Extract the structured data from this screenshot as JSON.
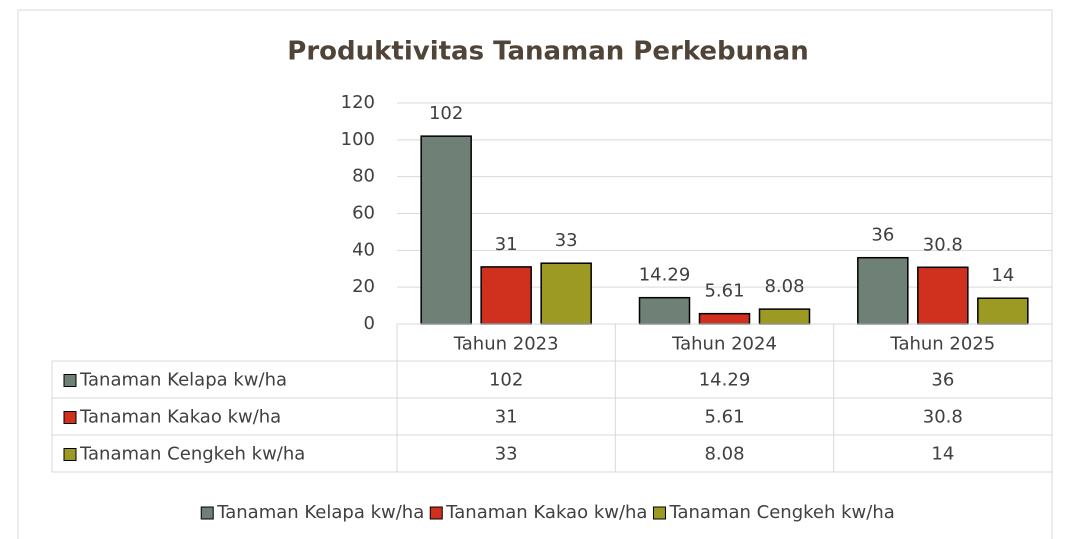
{
  "chart_data": {
    "type": "bar",
    "title": "Produktivitas Tanaman Perkebunan",
    "categories": [
      "Tahun 2023",
      "Tahun 2024",
      "Tahun 2025"
    ],
    "series": [
      {
        "name": "Tanaman Kelapa kw/ha",
        "color": "#6f8076",
        "values": [
          102,
          14.29,
          36
        ]
      },
      {
        "name": "Tanaman Kakao kw/ha",
        "color": "#d0301e",
        "values": [
          31,
          5.61,
          30.8
        ]
      },
      {
        "name": "Tanaman Cengkeh kw/ha",
        "color": "#9c9a22",
        "values": [
          33,
          8.08,
          14
        ]
      }
    ],
    "ylim": [
      0,
      120
    ],
    "yticks": [
      0,
      20,
      40,
      60,
      80,
      100,
      120
    ],
    "grid": true,
    "legend": "bottom",
    "data_table": true
  }
}
